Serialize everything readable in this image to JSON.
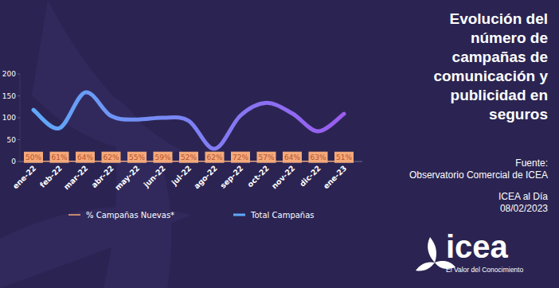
{
  "chart_data": {
    "type": "line",
    "title": "Evolución del número de campañas de comunicación y publicidad en seguros",
    "annotations": [
      "Fuente:",
      "Observatorio Comercial de ICEA",
      "ICEA al Día",
      "08/02/2023",
      "icea",
      "El Valor del Conocimiento"
    ],
    "categories": [
      "ene-22",
      "feb-22",
      "mar-22",
      "abr-22",
      "may-22",
      "jun-22",
      "jul-22",
      "ago-22",
      "sep-22",
      "oct-22",
      "nov-22",
      "dic-22",
      "ene-23"
    ],
    "series": [
      {
        "name": "% Campañas Nuevas*",
        "color": "#f4a97a",
        "values": [
          0.5,
          0.61,
          0.64,
          0.62,
          0.55,
          0.59,
          0.52,
          0.62,
          0.72,
          0.57,
          0.64,
          0.63,
          0.51
        ],
        "value_labels": [
          "50%",
          "61%",
          "64%",
          "62%",
          "55%",
          "59%",
          "52%",
          "62%",
          "72%",
          "57%",
          "64%",
          "63%",
          "51%"
        ]
      },
      {
        "name": "Total Campañas",
        "color": "#5fa8f8",
        "values": [
          118,
          76,
          158,
          104,
          96,
          100,
          93,
          29,
          105,
          134,
          110,
          69,
          109
        ]
      }
    ],
    "ylim": [
      0,
      200
    ],
    "yticks": [
      0,
      50,
      100,
      150,
      200
    ],
    "grid": false,
    "legend": "bottom",
    "data_labels": true
  }
}
